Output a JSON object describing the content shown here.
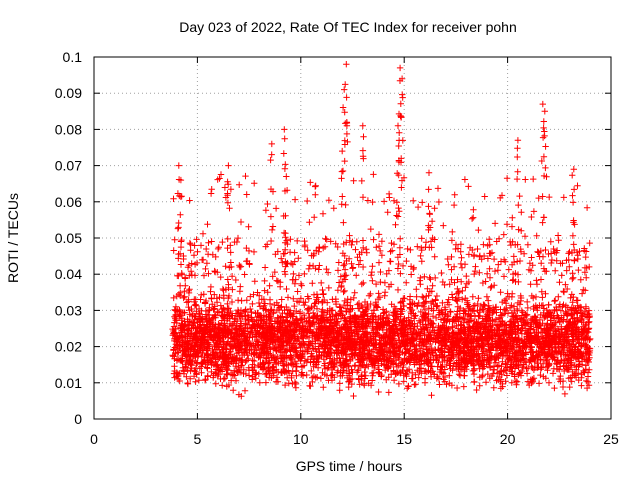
{
  "chart_data": {
    "type": "scatter",
    "title": "Day 023 of 2022, Rate Of TEC Index for receiver pohn",
    "xlabel": "GPS time / hours",
    "ylabel": "ROTI / TECUs",
    "xlim": [
      0,
      25
    ],
    "ylim": [
      0,
      0.1
    ],
    "x_ticks": [
      0,
      5,
      10,
      15,
      20,
      25
    ],
    "y_ticks": [
      0,
      0.01,
      0.02,
      0.03,
      0.04,
      0.05,
      0.06,
      0.07,
      0.08,
      0.09,
      0.1
    ],
    "x_tick_labels": [
      "0",
      "5",
      "10",
      "15",
      "20",
      "25"
    ],
    "y_tick_labels": [
      "0",
      "0.01",
      "0.02",
      "0.03",
      "0.04",
      "0.05",
      "0.06",
      "0.07",
      "0.08",
      "0.09",
      "0.1"
    ],
    "grid": true,
    "marker": "+",
    "color": "#ff0000",
    "x_range_of_data": [
      3.8,
      24.0
    ],
    "peaks": [
      {
        "x": 12.2,
        "y": 0.098
      },
      {
        "x": 12.1,
        "y": 0.091
      },
      {
        "x": 14.8,
        "y": 0.097
      },
      {
        "x": 14.9,
        "y": 0.094
      },
      {
        "x": 21.7,
        "y": 0.087
      },
      {
        "x": 21.8,
        "y": 0.085
      },
      {
        "x": 14.7,
        "y": 0.081
      },
      {
        "x": 9.2,
        "y": 0.08
      },
      {
        "x": 13.0,
        "y": 0.081
      },
      {
        "x": 20.5,
        "y": 0.077
      },
      {
        "x": 8.6,
        "y": 0.076
      },
      {
        "x": 12.0,
        "y": 0.074
      },
      {
        "x": 4.1,
        "y": 0.07
      },
      {
        "x": 23.2,
        "y": 0.069
      },
      {
        "x": 6.5,
        "y": 0.07
      },
      {
        "x": 16.2,
        "y": 0.068
      },
      {
        "x": 9.3,
        "y": 0.067
      },
      {
        "x": 4.2,
        "y": 0.066
      }
    ]
  }
}
